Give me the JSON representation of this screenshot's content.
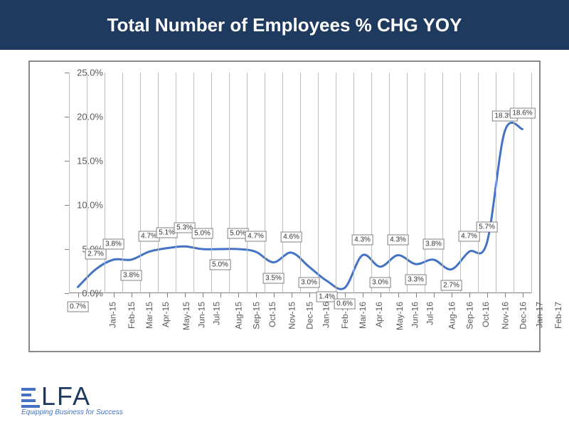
{
  "header": {
    "title": "Total Number of Employees % CHG YOY",
    "background_color": "#1f3a5f",
    "text_color": "#ffffff",
    "font_size": 26
  },
  "chart": {
    "type": "line",
    "background_color": "#ffffff",
    "border_color": "#888888",
    "grid_color": "#bfbfbf",
    "line_color": "#4472c4",
    "line_width": 3,
    "ylim": [
      0,
      25
    ],
    "ytick_step": 5,
    "y_format_suffix": "%",
    "y_decimal_places": 1,
    "categories": [
      "Jan-15",
      "Feb-15",
      "Mar-15",
      "Apr-15",
      "May-15",
      "Jun-15",
      "Jul-15",
      "Aug-15",
      "Sep-15",
      "Oct-15",
      "Nov-15",
      "Dec-15",
      "Jan-16",
      "Feb-16",
      "Mar-16",
      "Apr-16",
      "May-16",
      "Jun-16",
      "Jul-16",
      "Aug-16",
      "Sep-16",
      "Oct-16",
      "Nov-16",
      "Dec-16",
      "Jan-17",
      "Feb-17"
    ],
    "values": [
      0.7,
      2.7,
      3.8,
      3.8,
      4.7,
      5.1,
      5.3,
      5.0,
      5.0,
      5.0,
      4.7,
      3.5,
      4.6,
      3.0,
      1.4,
      0.6,
      4.3,
      3.0,
      4.3,
      3.3,
      3.8,
      2.7,
      4.7,
      5.7,
      18.3,
      18.6
    ],
    "data_label_bg": "#ffffff",
    "data_label_border": "#808080",
    "data_label_fontsize": 10,
    "axis_label_color": "#595959",
    "axis_label_fontsize": 13,
    "label_offsets_y": [
      28,
      -22,
      -22,
      22,
      -22,
      -22,
      -26,
      -22,
      22,
      -22,
      -22,
      22,
      -22,
      22,
      22,
      22,
      -22,
      22,
      -22,
      22,
      -22,
      22,
      -22,
      -22,
      -22,
      -22
    ]
  },
  "logo": {
    "text": "LFA",
    "tagline": "Equipping Business for Success",
    "main_color": "#1f3a5f",
    "accent_color": "#4472c4"
  }
}
